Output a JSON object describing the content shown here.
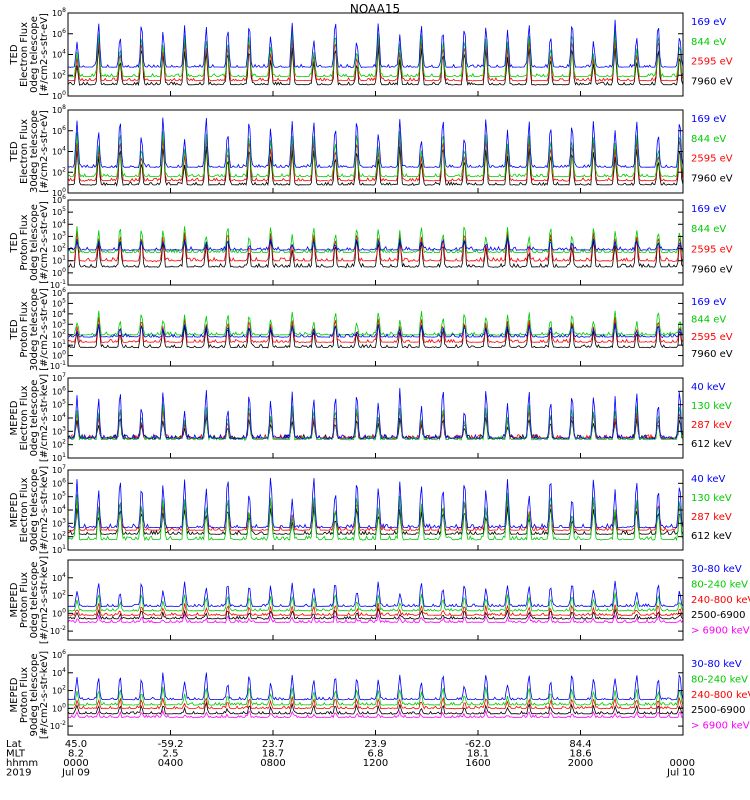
{
  "title": "NOAA15",
  "chart_data": {
    "type": "line",
    "title": "NOAA15",
    "panels": [
      {
        "ylabel": [
          "TED",
          "Electron Flux",
          "0deg telescope",
          "[#/cm2-s-str-eV]"
        ],
        "yticks": [
          "10^0",
          "10^2",
          "10^4",
          "10^6",
          "10^8"
        ],
        "yscale": "log",
        "ylim_exp": [
          0,
          8
        ],
        "grid": false,
        "series": [
          {
            "name": "7960 eV",
            "color": "#000000",
            "baseline_exp": 0.9,
            "peak_exp": 4.8
          },
          {
            "name": "2595 eV",
            "color": "#ff0000",
            "baseline_exp": 1.3,
            "peak_exp": 5.5
          },
          {
            "name": "844 eV",
            "color": "#00cc00",
            "baseline_exp": 1.7,
            "peak_exp": 6.2
          },
          {
            "name": "169 eV",
            "color": "#0000ff",
            "baseline_exp": 2.6,
            "peak_exp": 7.2
          }
        ]
      },
      {
        "ylabel": [
          "TED",
          "Electron Flux",
          "30deg telescope",
          "[#/cm2-s-str-eV]"
        ],
        "yticks": [
          "10^0",
          "10^2",
          "10^4",
          "10^6",
          "10^8"
        ],
        "yscale": "log",
        "ylim_exp": [
          0,
          8
        ],
        "grid": false,
        "series": [
          {
            "name": "7960 eV",
            "color": "#000000",
            "baseline_exp": 0.6,
            "peak_exp": 4.5
          },
          {
            "name": "2595 eV",
            "color": "#ff0000",
            "baseline_exp": 1.0,
            "peak_exp": 5.3
          },
          {
            "name": "844 eV",
            "color": "#00cc00",
            "baseline_exp": 1.4,
            "peak_exp": 6.0
          },
          {
            "name": "169 eV",
            "color": "#0000ff",
            "baseline_exp": 2.3,
            "peak_exp": 7.3
          }
        ]
      },
      {
        "ylabel": [
          "TED",
          "Proton Flux",
          "0deg telescope",
          "[#/cm2-s-str-eV]"
        ],
        "yticks": [
          "10^-1",
          "10^0",
          "10^1",
          "10^2",
          "10^3",
          "10^4",
          "10^5",
          "10^6"
        ],
        "yscale": "log",
        "ylim_exp": [
          -1,
          6
        ],
        "grid": false,
        "series": [
          {
            "name": "7960 eV",
            "color": "#000000",
            "baseline_exp": 0.3,
            "peak_exp": 3.0
          },
          {
            "name": "2595 eV",
            "color": "#ff0000",
            "baseline_exp": 0.8,
            "peak_exp": 3.4
          },
          {
            "name": "844 eV",
            "color": "#00cc00",
            "baseline_exp": 1.5,
            "peak_exp": 3.9
          },
          {
            "name": "169 eV",
            "color": "#0000ff",
            "baseline_exp": 1.7,
            "peak_exp": 2.8
          }
        ]
      },
      {
        "ylabel": [
          "TED",
          "Proton Flux",
          "30deg telescope",
          "[#/cm2-s-str-eV]"
        ],
        "yticks": [
          "10^-1",
          "10^0",
          "10^1",
          "10^2",
          "10^3",
          "10^4",
          "10^5",
          "10^6"
        ],
        "yscale": "log",
        "ylim_exp": [
          -1,
          6
        ],
        "grid": false,
        "series": [
          {
            "name": "7960 eV",
            "color": "#000000",
            "baseline_exp": 0.6,
            "peak_exp": 3.2
          },
          {
            "name": "2595 eV",
            "color": "#ff0000",
            "baseline_exp": 1.1,
            "peak_exp": 3.6
          },
          {
            "name": "844 eV",
            "color": "#00cc00",
            "baseline_exp": 1.8,
            "peak_exp": 4.2
          },
          {
            "name": "169 eV",
            "color": "#0000ff",
            "baseline_exp": 1.6,
            "peak_exp": 3.0
          }
        ]
      },
      {
        "ylabel": [
          "MEPED",
          "Electron Flux",
          "0deg telescope",
          "[#/cm2-s-str-keV]"
        ],
        "yticks": [
          "10^1",
          "10^2",
          "10^3",
          "10^4",
          "10^5",
          "10^6",
          "10^7"
        ],
        "yscale": "log",
        "ylim_exp": [
          1,
          7
        ],
        "grid": false,
        "series": [
          {
            "name": "612 keV",
            "color": "#000000",
            "baseline_exp": 2.3,
            "peak_exp": 4.0
          },
          {
            "name": "287 keV",
            "color": "#ff0000",
            "baseline_exp": 2.3,
            "peak_exp": 4.6
          },
          {
            "name": "130 keV",
            "color": "#00cc00",
            "baseline_exp": 2.2,
            "peak_exp": 5.0
          },
          {
            "name": "40 keV",
            "color": "#0000ff",
            "baseline_exp": 2.3,
            "peak_exp": 6.2
          }
        ]
      },
      {
        "ylabel": [
          "MEPED",
          "Electron Flux",
          "90deg telescope",
          "[#/cm2-s-str-keV]"
        ],
        "yticks": [
          "10^1",
          "10^2",
          "10^3",
          "10^4",
          "10^5",
          "10^6",
          "10^7"
        ],
        "yscale": "log",
        "ylim_exp": [
          1,
          7
        ],
        "grid": false,
        "series": [
          {
            "name": "612 keV",
            "color": "#000000",
            "baseline_exp": 2.0,
            "peak_exp": 4.2
          },
          {
            "name": "287 keV",
            "color": "#ff0000",
            "baseline_exp": 2.3,
            "peak_exp": 4.8
          },
          {
            "name": "130 keV",
            "color": "#00cc00",
            "baseline_exp": 1.6,
            "peak_exp": 5.2
          },
          {
            "name": "40 keV",
            "color": "#0000ff",
            "baseline_exp": 2.5,
            "peak_exp": 6.5
          }
        ]
      },
      {
        "ylabel": [
          "MEPED",
          "Proton Flux",
          "0deg telescope",
          "[#/cm2-s-str-keV]"
        ],
        "yticks": [
          "10^-2",
          "10^0",
          "10^2",
          "10^4"
        ],
        "yscale": "log",
        "ylim_exp": [
          -3,
          6
        ],
        "grid": false,
        "series": [
          {
            "name": "> 6900 keV",
            "color": "#ff00ff",
            "baseline_exp": -1.2,
            "peak_exp": -0.3
          },
          {
            "name": "2500-6900",
            "color": "#000000",
            "baseline_exp": -0.8,
            "peak_exp": 0.4
          },
          {
            "name": "240-800 keV",
            "color": "#ff0000",
            "baseline_exp": -0.4,
            "peak_exp": 1.0
          },
          {
            "name": "80-240 keV",
            "color": "#00cc00",
            "baseline_exp": 0.1,
            "peak_exp": 2.2
          },
          {
            "name": "30-80 keV",
            "color": "#0000ff",
            "baseline_exp": 0.6,
            "peak_exp": 3.6
          }
        ]
      },
      {
        "ylabel": [
          "MEPED",
          "Proton Flux",
          "90deg telescope",
          "[#/cm2-s-str-keV]"
        ],
        "yticks": [
          "10^-2",
          "10^0",
          "10^2",
          "10^4",
          "10^6"
        ],
        "yscale": "log",
        "ylim_exp": [
          -3,
          6
        ],
        "grid": false,
        "series": [
          {
            "name": "> 6900 keV",
            "color": "#ff00ff",
            "baseline_exp": -1.2,
            "peak_exp": -0.4
          },
          {
            "name": "2500-6900",
            "color": "#000000",
            "baseline_exp": -0.8,
            "peak_exp": 0.5
          },
          {
            "name": "240-800 keV",
            "color": "#ff0000",
            "baseline_exp": -0.2,
            "peak_exp": 1.2
          },
          {
            "name": "80-240 keV",
            "color": "#00cc00",
            "baseline_exp": 0.2,
            "peak_exp": 2.4
          },
          {
            "name": "30-80 keV",
            "color": "#0000ff",
            "baseline_exp": 0.8,
            "peak_exp": 4.0
          }
        ]
      }
    ],
    "x_axis": {
      "row_labels": [
        "Lat",
        "MLT",
        "hhmm",
        "2019"
      ],
      "ticks": [
        {
          "lat": "45.0",
          "mlt": "8.2",
          "hhmm": "0000",
          "date": "Jul 09"
        },
        {
          "lat": "-59.2",
          "mlt": "2.5",
          "hhmm": "0400",
          "date": ""
        },
        {
          "lat": "23.7",
          "mlt": "18.7",
          "hhmm": "0800",
          "date": ""
        },
        {
          "lat": "23.9",
          "mlt": "6.8",
          "hhmm": "1200",
          "date": ""
        },
        {
          "lat": "-62.0",
          "mlt": "18.1",
          "hhmm": "1600",
          "date": ""
        },
        {
          "lat": "84.4",
          "mlt": "18.6",
          "hhmm": "2000",
          "date": ""
        },
        {
          "lat": "",
          "mlt": "",
          "hhmm": "0000",
          "date": "Jul 10"
        }
      ],
      "xlim_hours": [
        0,
        24
      ]
    },
    "colors": {
      "black": "#000000",
      "red": "#ff0000",
      "green": "#00cc00",
      "blue": "#0000ff",
      "magenta": "#ff00ff"
    }
  }
}
